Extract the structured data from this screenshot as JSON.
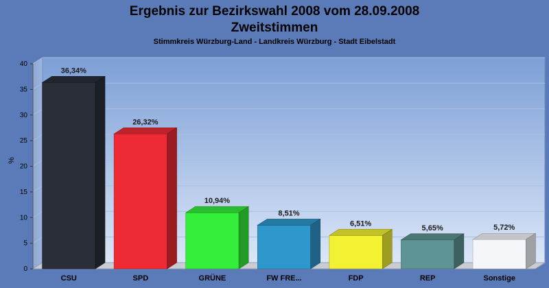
{
  "chart_data": {
    "type": "bar",
    "title": "Ergebnis zur Bezirkswahl 2008 vom 28.09.2008",
    "title_line2": "Zweitstimmen",
    "subtitle": "Stimmkreis Würzburg-Land - Landkreis Würzburg - Stadt Eibelstadt",
    "ylabel": "%",
    "ylim": [
      0,
      40
    ],
    "yticks": [
      "0",
      "5",
      "10",
      "15",
      "20",
      "25",
      "30",
      "35",
      "40"
    ],
    "grid": true,
    "categories": [
      "CSU",
      "SPD",
      "GRÜNE",
      "FW FRE...",
      "FDP",
      "REP",
      "Sonstige"
    ],
    "values": [
      36.34,
      26.32,
      10.94,
      8.51,
      6.51,
      5.65,
      5.72
    ],
    "value_labels": [
      "36,34%",
      "26,32%",
      "10,94%",
      "8,51%",
      "6,51%",
      "5,65%",
      "5,72%"
    ],
    "colors": [
      "#2a2e38",
      "#ee2a34",
      "#33ee3a",
      "#2e98cc",
      "#f2f232",
      "#5e9494",
      "#f4f6fa"
    ]
  }
}
